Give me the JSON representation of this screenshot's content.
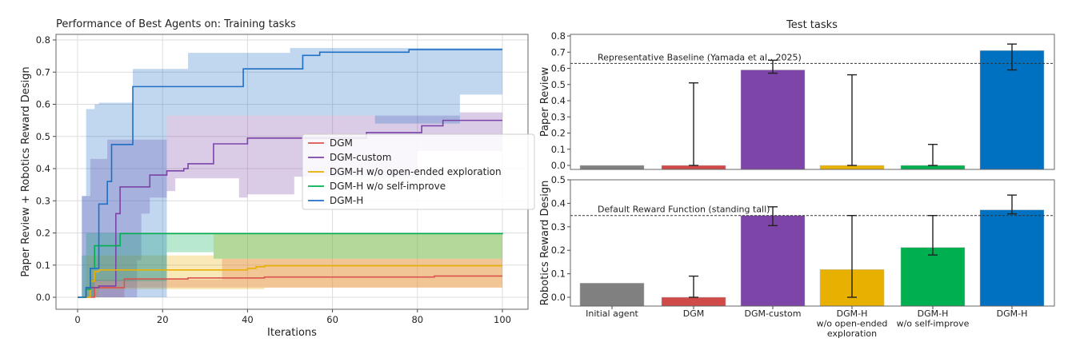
{
  "chart_data": [
    {
      "type": "line",
      "title": "Performance of Best Agents on:    Training tasks",
      "xlabel": "Iterations",
      "ylabel": "Paper Review + Robotics Reward Design",
      "xlim": [
        -5,
        105
      ],
      "ylim": [
        -0.03,
        0.81
      ],
      "xticks": [
        0,
        20,
        40,
        60,
        80,
        100
      ],
      "yticks": [
        0.0,
        0.1,
        0.2,
        0.3,
        0.4,
        0.5,
        0.6,
        0.7,
        0.8
      ],
      "grid": true,
      "legend_position": "center-right",
      "step": "post",
      "series": [
        {
          "name": "DGM",
          "color": "#d9534f",
          "points": [
            [
              0,
              0
            ],
            [
              4,
              0.03
            ],
            [
              11,
              0.057
            ],
            [
              26,
              0.06
            ],
            [
              44,
              0.063
            ],
            [
              84,
              0.066
            ],
            [
              100,
              0.066
            ]
          ],
          "band_upper": [
            [
              0,
              0
            ],
            [
              3,
              0.055
            ],
            [
              34,
              0.12
            ],
            [
              100,
              0.12
            ]
          ],
          "band_lower": [
            [
              0,
              0
            ],
            [
              11,
              0.03
            ],
            [
              100,
              0.03
            ]
          ]
        },
        {
          "name": "DGM-custom",
          "color": "#7b44a8",
          "points": [
            [
              0,
              0
            ],
            [
              2,
              0.03
            ],
            [
              5,
              0.035
            ],
            [
              9,
              0.26
            ],
            [
              10,
              0.343
            ],
            [
              17,
              0.38
            ],
            [
              21,
              0.393
            ],
            [
              25,
              0.4
            ],
            [
              26,
              0.415
            ],
            [
              32,
              0.477
            ],
            [
              40,
              0.495
            ],
            [
              68,
              0.512
            ],
            [
              81,
              0.533
            ],
            [
              86,
              0.55
            ],
            [
              100,
              0.55
            ]
          ],
          "band_upper": [
            [
              0,
              0
            ],
            [
              1,
              0.315
            ],
            [
              3,
              0.43
            ],
            [
              7,
              0.49
            ],
            [
              21,
              0.565
            ],
            [
              90,
              0.575
            ],
            [
              100,
              0.575
            ]
          ],
          "band_lower": [
            [
              0,
              0
            ],
            [
              14,
              0.115
            ],
            [
              15,
              0.26
            ],
            [
              17,
              0.31
            ],
            [
              21,
              0.33
            ],
            [
              23,
              0.37
            ],
            [
              38,
              0.31
            ],
            [
              40,
              0.32
            ],
            [
              51,
              0.375
            ],
            [
              80,
              0.455
            ],
            [
              100,
              0.46
            ]
          ]
        },
        {
          "name": "DGM-H w/o open-ended exploration",
          "color": "#e8b000",
          "points": [
            [
              0,
              0
            ],
            [
              3,
              0.05
            ],
            [
              4,
              0.08
            ],
            [
              5,
              0.085
            ],
            [
              38,
              0.085
            ],
            [
              40,
              0.09
            ],
            [
              42,
              0.095
            ],
            [
              44,
              0.098
            ],
            [
              100,
              0.098
            ]
          ],
          "band_upper": [
            [
              0,
              0
            ],
            [
              2,
              0.13
            ],
            [
              32,
              0.2
            ],
            [
              100,
              0.2
            ]
          ],
          "band_lower": [
            [
              0,
              0
            ],
            [
              5,
              0.025
            ],
            [
              44,
              0.03
            ],
            [
              100,
              0.045
            ]
          ]
        },
        {
          "name": "DGM-H w/o self-improve",
          "color": "#00b050",
          "points": [
            [
              0,
              0
            ],
            [
              2,
              0.025
            ],
            [
              3,
              0.09
            ],
            [
              4,
              0.16
            ],
            [
              9,
              0.16
            ],
            [
              10,
              0.198
            ],
            [
              100,
              0.2
            ]
          ],
          "band_upper": [
            [
              0,
              0
            ],
            [
              1,
              0.13
            ],
            [
              2,
              0.2
            ],
            [
              100,
              0.2
            ]
          ],
          "band_lower": [
            [
              0,
              0
            ],
            [
              4,
              0.05
            ],
            [
              21,
              0.14
            ],
            [
              32,
              0.12
            ],
            [
              100,
              0.12
            ]
          ]
        },
        {
          "name": "DGM-H",
          "color": "#1f6fc4",
          "points": [
            [
              0,
              0
            ],
            [
              1,
              0
            ],
            [
              2,
              0.03
            ],
            [
              3,
              0.09
            ],
            [
              4,
              0.09
            ],
            [
              5,
              0.29
            ],
            [
              6,
              0.29
            ],
            [
              7,
              0.36
            ],
            [
              8,
              0.475
            ],
            [
              13,
              0.655
            ],
            [
              39,
              0.71
            ],
            [
              53,
              0.752
            ],
            [
              57,
              0.762
            ],
            [
              78,
              0.77
            ],
            [
              100,
              0.77
            ]
          ],
          "band_upper": [
            [
              0,
              0
            ],
            [
              1,
              0.315
            ],
            [
              2,
              0.585
            ],
            [
              4,
              0.6
            ],
            [
              5,
              0.605
            ],
            [
              13,
              0.71
            ],
            [
              26,
              0.76
            ],
            [
              38,
              0.76
            ],
            [
              50,
              0.775
            ],
            [
              100,
              0.775
            ]
          ],
          "band_lower": [
            [
              0,
              0
            ],
            [
              20,
              0
            ],
            [
              21,
              0.565
            ],
            [
              70,
              0.54
            ],
            [
              90,
              0.63
            ],
            [
              100,
              0.63
            ]
          ]
        }
      ]
    },
    {
      "type": "bar",
      "title": "Test tasks",
      "ylabel": "Paper Review",
      "ylim": [
        -0.03,
        0.8
      ],
      "yticks": [
        0.0,
        0.1,
        0.2,
        0.3,
        0.4,
        0.5,
        0.6,
        0.7,
        0.8
      ],
      "categories": [
        "Initial agent",
        "DGM",
        "DGM-custom",
        "DGM-H\nw/o open-ended\nexploration",
        "DGM-H\nw/o self-improve",
        "DGM-H"
      ],
      "colors": [
        "#808080",
        "#d04a4a",
        "#7e45a8",
        "#e8b000",
        "#00b050",
        "#0070c0"
      ],
      "values": [
        0.0,
        0.0,
        0.59,
        0.0,
        0.0,
        0.71
      ],
      "error_bars": [
        null,
        [
          0.0,
          0.51
        ],
        [
          0.57,
          0.65
        ],
        [
          0.0,
          0.56
        ],
        [
          0.0,
          0.13
        ],
        [
          0.59,
          0.75
        ]
      ],
      "reference_line": {
        "value": 0.63,
        "label": "Representative Baseline (Yamada et al., 2025)"
      }
    },
    {
      "type": "bar",
      "ylabel": "Robotics Reward Design",
      "ylim": [
        -0.03,
        0.5
      ],
      "yticks": [
        0.0,
        0.1,
        0.2,
        0.3,
        0.4,
        0.5
      ],
      "categories": [
        "Initial agent",
        "DGM",
        "DGM-custom",
        "DGM-H\nw/o open-ended\nexploration",
        "DGM-H\nw/o self-improve",
        "DGM-H"
      ],
      "colors": [
        "#808080",
        "#d04a4a",
        "#7e45a8",
        "#e8b000",
        "#00b050",
        "#0070c0"
      ],
      "values": [
        0.06,
        0.0,
        0.348,
        0.118,
        0.212,
        0.372
      ],
      "error_bars": [
        null,
        [
          0.0,
          0.09
        ],
        [
          0.305,
          0.385
        ],
        [
          0.0,
          0.348
        ],
        [
          0.18,
          0.348
        ],
        [
          0.355,
          0.435
        ]
      ],
      "reference_line": {
        "value": 0.348,
        "label": "Default Reward Function (standing tall)"
      }
    }
  ]
}
